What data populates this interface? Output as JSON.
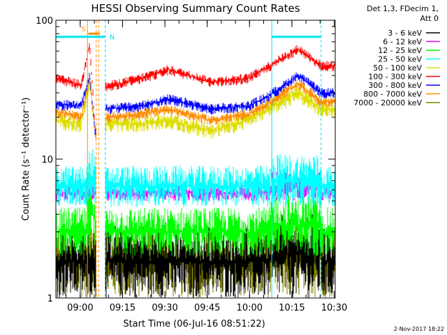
{
  "chart_data": {
    "type": "line",
    "title": "HESSI Observing Summary Count Rates",
    "xlabel": "Start Time (06-Jul-16 08:51:22)",
    "ylabel": "Count Rate (s⁻¹ detector⁻¹)",
    "yscale": "log",
    "ylim": [
      1,
      100
    ],
    "xlim_minutes": [
      0,
      99
    ],
    "x_tick_labels": [
      "09:00",
      "09:15",
      "09:30",
      "09:45",
      "10:00",
      "10:15",
      "10:30"
    ],
    "x_tick_minutes": [
      8.63,
      23.63,
      38.63,
      53.63,
      68.63,
      83.63,
      98.63
    ],
    "y_tick_labels": [
      "1",
      "10",
      "100"
    ],
    "y_tick_values": [
      1,
      10,
      100
    ],
    "legend_header": [
      "Det 1,3, FDecim 1,",
      "Att 0"
    ],
    "legend_position": "top-right",
    "timestamp": "2-Nov-2017 18:22",
    "markers": [
      {
        "label": "S",
        "color": "#ff8c00",
        "start": 11.5,
        "end": 15.5,
        "level": 80
      },
      {
        "label": "N",
        "color": "#00e5ee",
        "start": 0,
        "end": 17.5,
        "level": 76
      },
      {
        "label": "",
        "color": "#00e5ee",
        "start": 76.5,
        "end": 94,
        "level": 76
      }
    ],
    "vlines": [
      {
        "x": 11.2,
        "color": "#ff8c00",
        "style": "solid"
      },
      {
        "x": 14.3,
        "color": "#ff8c00",
        "style": "dashed"
      },
      {
        "x": 15.2,
        "color": "#ff8c00",
        "style": "dashed"
      },
      {
        "x": 17.5,
        "color": "#00e5ee",
        "style": "dashed"
      },
      {
        "x": 76.5,
        "color": "#00e5ee",
        "style": "solid"
      },
      {
        "x": 94.0,
        "color": "#00e5ee",
        "style": "dashed"
      }
    ],
    "gaps": [
      [
        14.3,
        17.5
      ]
    ],
    "series": [
      {
        "name": "3 - 6 keV",
        "color": "#000000",
        "low": 1,
        "high": 3.4,
        "flare": 0
      },
      {
        "name": "6 - 12 keV",
        "color": "#ff00ff",
        "low": 5,
        "high": 6.5,
        "flare": 0
      },
      {
        "name": "12 - 25 keV",
        "color": "#00ff00",
        "low": 2,
        "high": 4.5,
        "flare": 1
      },
      {
        "name": "25 - 50 keV",
        "color": "#00ffff",
        "low": 4.5,
        "high": 9,
        "flare": 2
      },
      {
        "name": "50 - 100 keV",
        "color": "#dddd00",
        "points": [
          [
            0,
            19
          ],
          [
            9,
            18
          ],
          [
            12,
            36
          ],
          [
            14,
            15
          ],
          [
            17.5,
            18
          ],
          [
            30,
            18
          ],
          [
            40,
            19
          ],
          [
            55,
            16
          ],
          [
            68,
            19
          ],
          [
            75,
            23
          ],
          [
            86,
            30
          ],
          [
            94,
            23
          ]
        ]
      },
      {
        "name": "100 - 300 keV",
        "color": "#ff0000",
        "points": [
          [
            0,
            38
          ],
          [
            9,
            34
          ],
          [
            12,
            68
          ],
          [
            14,
            15
          ],
          [
            17.5,
            33
          ],
          [
            30,
            38
          ],
          [
            40,
            44
          ],
          [
            55,
            36
          ],
          [
            68,
            38
          ],
          [
            75,
            46
          ],
          [
            86,
            62
          ],
          [
            94,
            47
          ]
        ]
      },
      {
        "name": "300 - 800 keV",
        "color": "#0000ff",
        "points": [
          [
            0,
            25
          ],
          [
            9,
            24
          ],
          [
            12,
            40
          ],
          [
            14,
            15
          ],
          [
            17.5,
            23
          ],
          [
            30,
            24
          ],
          [
            40,
            27
          ],
          [
            55,
            23
          ],
          [
            68,
            24
          ],
          [
            75,
            28
          ],
          [
            86,
            40
          ],
          [
            94,
            30
          ]
        ]
      },
      {
        "name": "800 - 7000 keV",
        "color": "#ff8c00",
        "points": [
          [
            0,
            22
          ],
          [
            9,
            20
          ],
          [
            12,
            38
          ],
          [
            14,
            15
          ],
          [
            17.5,
            20
          ],
          [
            30,
            21
          ],
          [
            40,
            23
          ],
          [
            55,
            19
          ],
          [
            68,
            21
          ],
          [
            75,
            25
          ],
          [
            86,
            35
          ],
          [
            94,
            26
          ]
        ]
      },
      {
        "name": "7000 - 20000 keV",
        "color": "#808000",
        "low": 1,
        "high": 3.3,
        "flare": 0
      }
    ]
  }
}
